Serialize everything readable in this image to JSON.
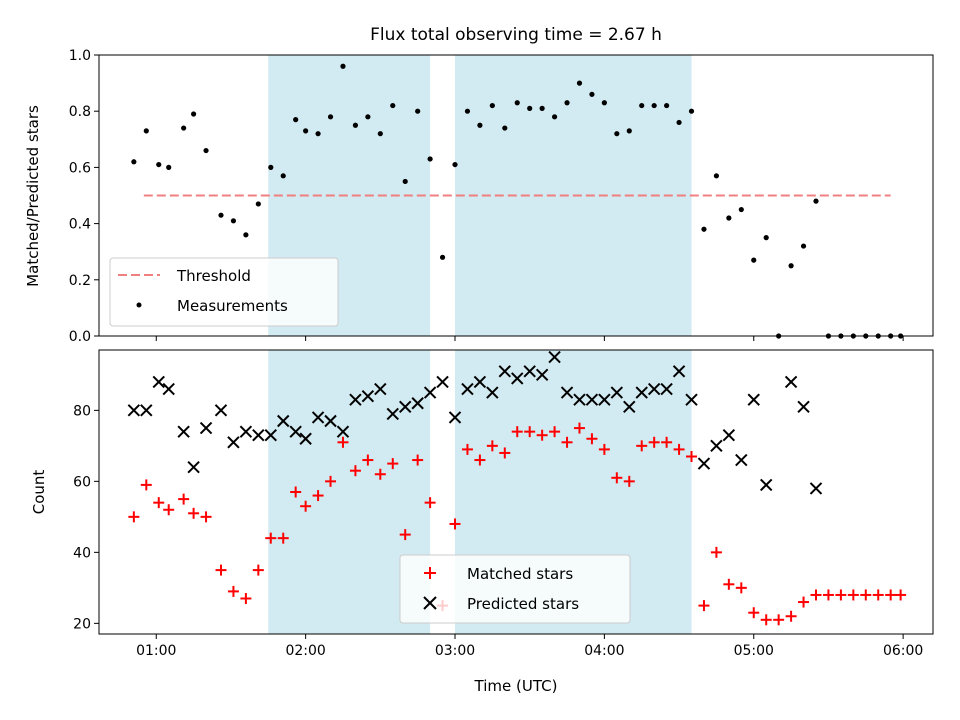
{
  "chart_data": {
    "title": "Flux total observing time = 2.67 h",
    "xlabel": "Time (UTC)",
    "xlim": [
      "00:37",
      "06:12"
    ],
    "xticks": [
      "01:00",
      "02:00",
      "03:00",
      "04:00",
      "05:00",
      "06:00"
    ],
    "highlight_spans": [
      {
        "start": "01:45",
        "end": "02:50",
        "color": "#add8e6"
      },
      {
        "start": "03:00",
        "end": "04:35",
        "color": "#add8e6"
      }
    ],
    "subplots": [
      {
        "type": "scatter",
        "ylabel": "Matched/Predicted stars",
        "ylim": [
          0,
          1.0
        ],
        "yticks": [
          "0.0",
          "0.2",
          "0.4",
          "0.6",
          "0.8",
          "1.0"
        ],
        "legend_position": "lower-left",
        "threshold": {
          "name": "Threshold",
          "value": 0.5,
          "from": "00:55",
          "to": "05:55",
          "color": "#f08080"
        },
        "series": [
          {
            "name": "Measurements",
            "marker": "dot",
            "color": "#000000",
            "points": [
              [
                "00:51",
                0.62
              ],
              [
                "00:56",
                0.73
              ],
              [
                "01:01",
                0.61
              ],
              [
                "01:05",
                0.6
              ],
              [
                "01:11",
                0.74
              ],
              [
                "01:15",
                0.79
              ],
              [
                "01:20",
                0.66
              ],
              [
                "01:26",
                0.43
              ],
              [
                "01:31",
                0.41
              ],
              [
                "01:36",
                0.36
              ],
              [
                "01:41",
                0.47
              ],
              [
                "01:46",
                0.6
              ],
              [
                "01:51",
                0.57
              ],
              [
                "01:56",
                0.77
              ],
              [
                "02:00",
                0.73
              ],
              [
                "02:05",
                0.72
              ],
              [
                "02:10",
                0.78
              ],
              [
                "02:15",
                0.96
              ],
              [
                "02:20",
                0.75
              ],
              [
                "02:25",
                0.78
              ],
              [
                "02:30",
                0.72
              ],
              [
                "02:35",
                0.82
              ],
              [
                "02:40",
                0.55
              ],
              [
                "02:45",
                0.8
              ],
              [
                "02:50",
                0.63
              ],
              [
                "02:55",
                0.28
              ],
              [
                "03:00",
                0.61
              ],
              [
                "03:05",
                0.8
              ],
              [
                "03:10",
                0.75
              ],
              [
                "03:15",
                0.82
              ],
              [
                "03:20",
                0.74
              ],
              [
                "03:25",
                0.83
              ],
              [
                "03:30",
                0.81
              ],
              [
                "03:35",
                0.81
              ],
              [
                "03:40",
                0.78
              ],
              [
                "03:45",
                0.83
              ],
              [
                "03:50",
                0.9
              ],
              [
                "03:55",
                0.86
              ],
              [
                "04:00",
                0.83
              ],
              [
                "04:05",
                0.72
              ],
              [
                "04:10",
                0.73
              ],
              [
                "04:15",
                0.82
              ],
              [
                "04:20",
                0.82
              ],
              [
                "04:25",
                0.82
              ],
              [
                "04:30",
                0.76
              ],
              [
                "04:35",
                0.8
              ],
              [
                "04:40",
                0.38
              ],
              [
                "04:45",
                0.57
              ],
              [
                "04:50",
                0.42
              ],
              [
                "04:55",
                0.45
              ],
              [
                "05:00",
                0.27
              ],
              [
                "05:05",
                0.35
              ],
              [
                "05:10",
                0.0
              ],
              [
                "05:15",
                0.25
              ],
              [
                "05:20",
                0.32
              ],
              [
                "05:25",
                0.48
              ],
              [
                "05:30",
                0.0
              ],
              [
                "05:35",
                0.0
              ],
              [
                "05:40",
                0.0
              ],
              [
                "05:45",
                0.0
              ],
              [
                "05:50",
                0.0
              ],
              [
                "05:55",
                0.0
              ],
              [
                "05:59",
                0.0
              ]
            ]
          }
        ]
      },
      {
        "type": "scatter",
        "ylabel": "Count",
        "ylim": [
          17,
          97
        ],
        "yticks": [
          "20",
          "40",
          "60",
          "80"
        ],
        "legend_position": "lower-center",
        "series": [
          {
            "name": "Matched stars",
            "marker": "plus",
            "color": "#ff0000",
            "points": [
              [
                "00:51",
                50
              ],
              [
                "00:56",
                59
              ],
              [
                "01:01",
                54
              ],
              [
                "01:05",
                52
              ],
              [
                "01:11",
                55
              ],
              [
                "01:15",
                51
              ],
              [
                "01:20",
                50
              ],
              [
                "01:26",
                35
              ],
              [
                "01:31",
                29
              ],
              [
                "01:36",
                27
              ],
              [
                "01:41",
                35
              ],
              [
                "01:46",
                44
              ],
              [
                "01:51",
                44
              ],
              [
                "01:56",
                57
              ],
              [
                "02:00",
                53
              ],
              [
                "02:05",
                56
              ],
              [
                "02:10",
                60
              ],
              [
                "02:15",
                71
              ],
              [
                "02:20",
                63
              ],
              [
                "02:25",
                66
              ],
              [
                "02:30",
                62
              ],
              [
                "02:35",
                65
              ],
              [
                "02:40",
                45
              ],
              [
                "02:45",
                66
              ],
              [
                "02:50",
                54
              ],
              [
                "02:55",
                25
              ],
              [
                "03:00",
                48
              ],
              [
                "03:05",
                69
              ],
              [
                "03:10",
                66
              ],
              [
                "03:15",
                70
              ],
              [
                "03:20",
                68
              ],
              [
                "03:25",
                74
              ],
              [
                "03:30",
                74
              ],
              [
                "03:35",
                73
              ],
              [
                "03:40",
                74
              ],
              [
                "03:45",
                71
              ],
              [
                "03:50",
                75
              ],
              [
                "03:55",
                72
              ],
              [
                "04:00",
                69
              ],
              [
                "04:05",
                61
              ],
              [
                "04:10",
                60
              ],
              [
                "04:15",
                70
              ],
              [
                "04:20",
                71
              ],
              [
                "04:25",
                71
              ],
              [
                "04:30",
                69
              ],
              [
                "04:35",
                67
              ],
              [
                "04:40",
                25
              ],
              [
                "04:45",
                40
              ],
              [
                "04:50",
                31
              ],
              [
                "04:55",
                30
              ],
              [
                "05:00",
                23
              ],
              [
                "05:05",
                21
              ],
              [
                "05:10",
                21
              ],
              [
                "05:15",
                22
              ],
              [
                "05:20",
                26
              ],
              [
                "05:25",
                28
              ],
              [
                "05:30",
                28
              ],
              [
                "05:35",
                28
              ],
              [
                "05:40",
                28
              ],
              [
                "05:45",
                28
              ],
              [
                "05:50",
                28
              ],
              [
                "05:55",
                28
              ],
              [
                "05:59",
                28
              ]
            ]
          },
          {
            "name": "Predicted stars",
            "marker": "x",
            "color": "#000000",
            "points": [
              [
                "00:51",
                80
              ],
              [
                "00:56",
                80
              ],
              [
                "01:01",
                88
              ],
              [
                "01:05",
                86
              ],
              [
                "01:11",
                74
              ],
              [
                "01:15",
                64
              ],
              [
                "01:20",
                75
              ],
              [
                "01:26",
                80
              ],
              [
                "01:31",
                71
              ],
              [
                "01:36",
                74
              ],
              [
                "01:41",
                73
              ],
              [
                "01:46",
                73
              ],
              [
                "01:51",
                77
              ],
              [
                "01:56",
                74
              ],
              [
                "02:00",
                72
              ],
              [
                "02:05",
                78
              ],
              [
                "02:10",
                77
              ],
              [
                "02:15",
                74
              ],
              [
                "02:20",
                83
              ],
              [
                "02:25",
                84
              ],
              [
                "02:30",
                86
              ],
              [
                "02:35",
                79
              ],
              [
                "02:40",
                81
              ],
              [
                "02:45",
                82
              ],
              [
                "02:50",
                85
              ],
              [
                "02:55",
                88
              ],
              [
                "03:00",
                78
              ],
              [
                "03:05",
                86
              ],
              [
                "03:10",
                88
              ],
              [
                "03:15",
                85
              ],
              [
                "03:20",
                91
              ],
              [
                "03:25",
                89
              ],
              [
                "03:30",
                91
              ],
              [
                "03:35",
                90
              ],
              [
                "03:40",
                95
              ],
              [
                "03:45",
                85
              ],
              [
                "03:50",
                83
              ],
              [
                "03:55",
                83
              ],
              [
                "04:00",
                83
              ],
              [
                "04:05",
                85
              ],
              [
                "04:10",
                81
              ],
              [
                "04:15",
                85
              ],
              [
                "04:20",
                86
              ],
              [
                "04:25",
                86
              ],
              [
                "04:30",
                91
              ],
              [
                "04:35",
                83
              ],
              [
                "04:40",
                65
              ],
              [
                "04:45",
                70
              ],
              [
                "04:50",
                73
              ],
              [
                "04:55",
                66
              ],
              [
                "05:00",
                83
              ],
              [
                "05:05",
                59
              ],
              [
                "05:15",
                88
              ],
              [
                "05:20",
                81
              ],
              [
                "05:25",
                58
              ]
            ]
          }
        ]
      }
    ]
  }
}
